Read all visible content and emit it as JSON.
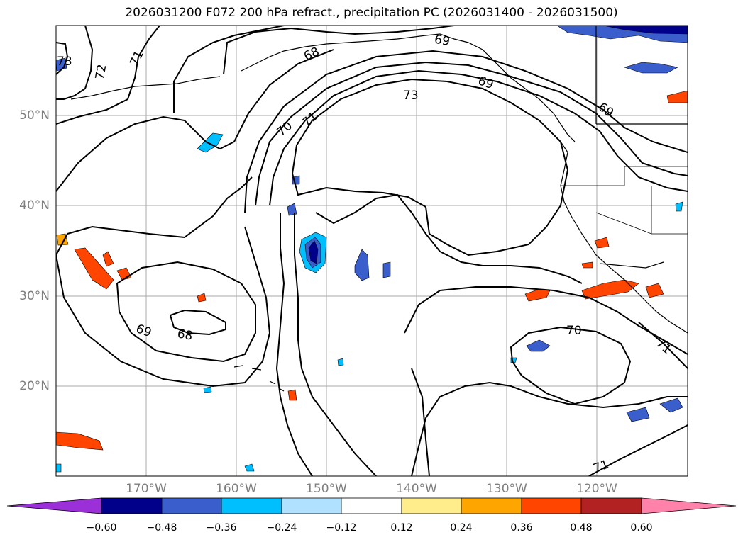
{
  "title": "2026031200 F072 200 hPa refract., precipitation PC (2026031400 - 2026031500)",
  "latitude_labels": [
    "50°N",
    "40°N",
    "30°N",
    "20°N"
  ],
  "longitude_labels": [
    "170°W",
    "160°W",
    "150°W",
    "140°W",
    "130°W",
    "120°W"
  ],
  "contour_labels": [
    "73",
    "72",
    "71",
    "68",
    "69",
    "70",
    "71",
    "73",
    "69",
    "69",
    "68",
    "70",
    "71",
    "71"
  ],
  "colorbar": {
    "tick_labels": [
      "−0.60",
      "−0.48",
      "−0.36",
      "−0.24",
      "−0.12",
      "0.12",
      "0.24",
      "0.36",
      "0.48",
      "0.60"
    ],
    "colors": [
      "#9b30d9",
      "#00008b",
      "#3a5fcd",
      "#00bfff",
      "#b0e2ff",
      "#ffffff",
      "#ffec8b",
      "#ffa500",
      "#ff4500",
      "#b22222",
      "#ff82ab"
    ]
  },
  "colors": {
    "gridline": "#aaaaaa",
    "contour": "#000000",
    "axis_label": "#7f7f7f"
  }
}
